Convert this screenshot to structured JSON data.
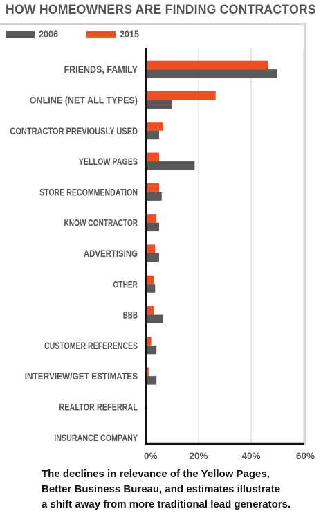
{
  "chart_data": {
    "type": "bar",
    "orientation": "horizontal",
    "title": "HOW HOMEOWNERS ARE FINDING CONTRACTORS",
    "categories": [
      "FRIENDS, FAMILY",
      "ONLINE (NET ALL TYPES)",
      "CONTRACTOR PREVIOUSLY USED",
      "YELLOW PAGES",
      "STORE RECOMMENDATION",
      "KNOW CONTRACTOR",
      "ADVERTISING",
      "OTHER",
      "BBB",
      "CUSTOMER REFERENCES",
      "INTERVIEW/GET ESTIMATES",
      "REALTOR REFERRAL",
      "INSURANCE COMPANY"
    ],
    "series": [
      {
        "name": "2006",
        "color": "#595959",
        "values": [
          50,
          10,
          5,
          18.5,
          6,
          5,
          5,
          3.5,
          6.5,
          4,
          4,
          0.5,
          0
        ]
      },
      {
        "name": "2015",
        "color": "#f04e23",
        "values": [
          46.5,
          26.5,
          6.5,
          5,
          5,
          4,
          3.5,
          3,
          3,
          2,
          1,
          0.3,
          0
        ]
      }
    ],
    "xlim": [
      0,
      60
    ],
    "xticks": [
      0,
      20,
      40,
      60
    ],
    "tick_labels": [
      "0%",
      "20%",
      "40%",
      "60%"
    ],
    "xlabel": "",
    "ylabel": "",
    "grid": true,
    "legend": "top-left"
  },
  "caption": [
    "The declines in relevance of the Yellow Pages,",
    "Better Business Bureau, and estimates illustrate",
    "a shift away from more traditional lead generators."
  ]
}
